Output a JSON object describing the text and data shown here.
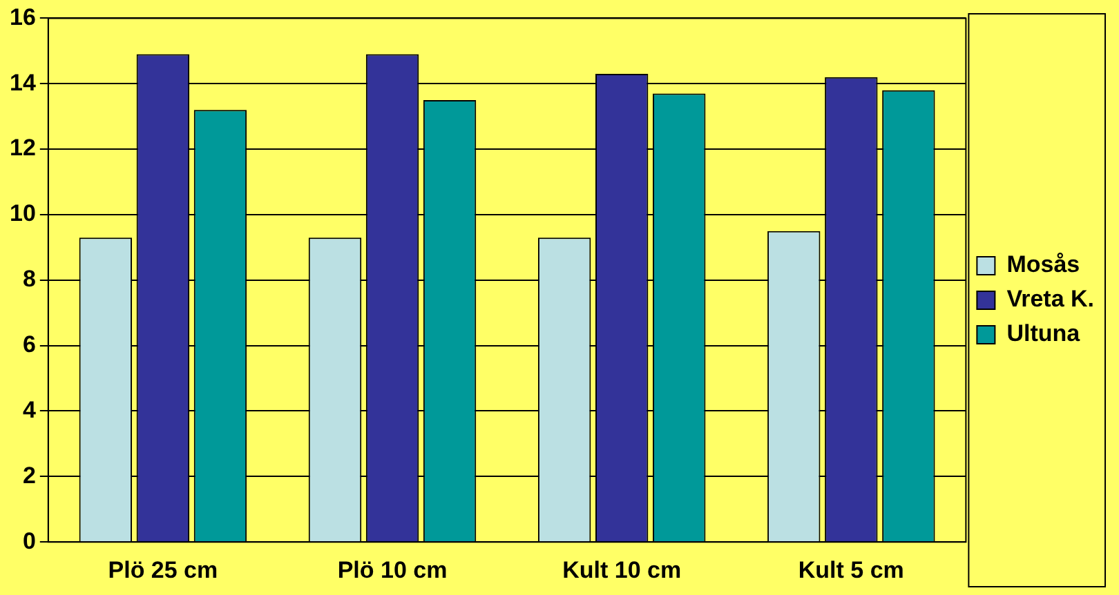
{
  "chart_data": {
    "type": "bar",
    "categories": [
      "Plö 25 cm",
      "Plö 10 cm",
      "Kult 10 cm",
      "Kult 5 cm"
    ],
    "series": [
      {
        "name": "Mosås",
        "color": "#bbe0e3",
        "values": [
          9.3,
          9.3,
          9.3,
          9.5
        ]
      },
      {
        "name": "Vreta K.",
        "color": "#333399",
        "values": [
          14.9,
          14.9,
          14.3,
          14.2
        ]
      },
      {
        "name": "Ultuna",
        "color": "#009999",
        "values": [
          13.2,
          13.5,
          13.7,
          13.8
        ]
      }
    ],
    "ylim": [
      0,
      16
    ],
    "yticks": [
      0,
      2,
      4,
      6,
      8,
      10,
      12,
      14,
      16
    ],
    "grid": "y",
    "legend": "right"
  }
}
